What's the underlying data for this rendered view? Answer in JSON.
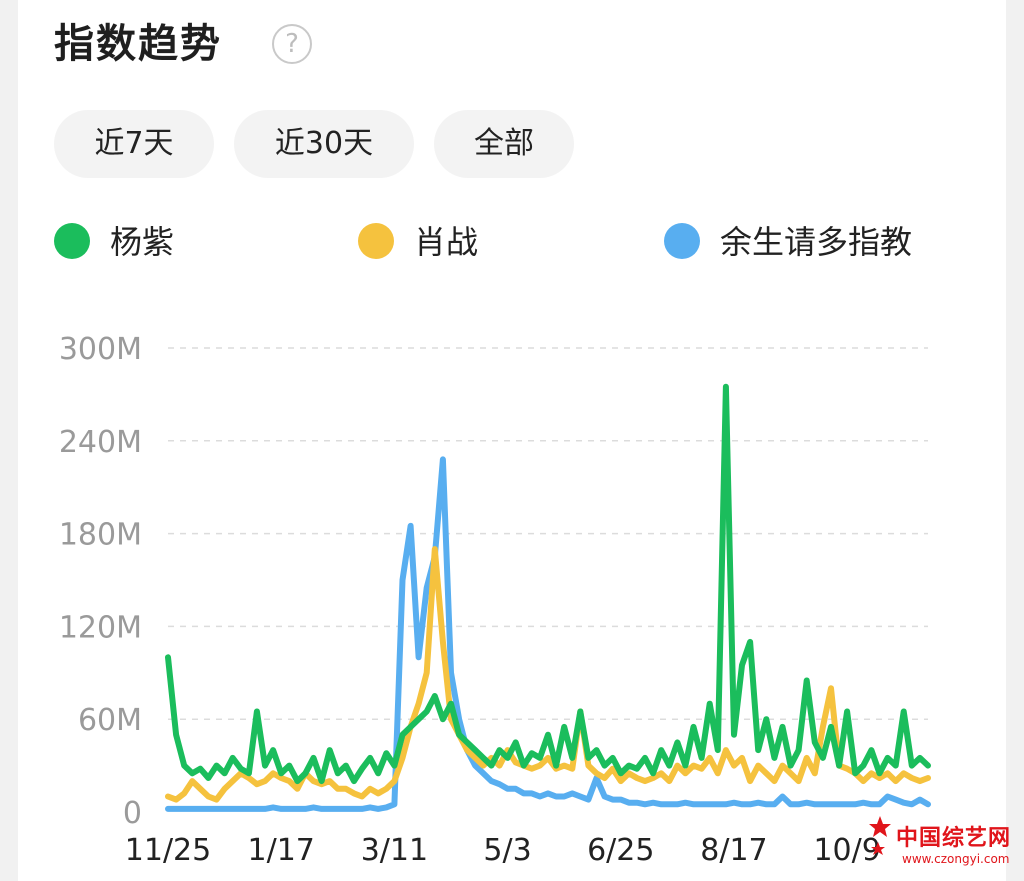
{
  "header": {
    "title": "指数趋势",
    "help_icon": "question-circle-icon",
    "help_text": "?"
  },
  "ranges": [
    {
      "label": "近7天",
      "active": false
    },
    {
      "label": "近30天",
      "active": false
    },
    {
      "label": "全部",
      "active": true
    }
  ],
  "watermark": {
    "text": "中国综艺网",
    "url": "www.czongyi.com"
  },
  "chart_data": {
    "type": "line",
    "title": "",
    "xlabel": "",
    "ylabel": "",
    "ylim": [
      0,
      300
    ],
    "y_unit": "M",
    "y_ticks": [
      "0",
      "60M",
      "120M",
      "180M",
      "240M",
      "300M"
    ],
    "y_tick_values": [
      0,
      60,
      120,
      180,
      240,
      300
    ],
    "grid": "dashed-horizontal",
    "legend": "top",
    "x_tick_labels": [
      "11/25",
      "1/17",
      "3/11",
      "5/3",
      "6/25",
      "8/17",
      "10/9"
    ],
    "x_tick_index": [
      0,
      14,
      28,
      42,
      56,
      70,
      84
    ],
    "series": [
      {
        "name": "杨紫",
        "color": "#1bbd5c",
        "values": [
          100,
          50,
          30,
          25,
          28,
          22,
          30,
          25,
          35,
          28,
          25,
          65,
          30,
          40,
          25,
          30,
          20,
          25,
          35,
          20,
          40,
          25,
          30,
          20,
          28,
          35,
          25,
          38,
          30,
          50,
          55,
          60,
          65,
          75,
          60,
          70,
          50,
          45,
          40,
          35,
          30,
          40,
          35,
          45,
          30,
          38,
          35,
          50,
          30,
          55,
          35,
          65,
          35,
          40,
          30,
          35,
          25,
          30,
          28,
          35,
          25,
          40,
          30,
          45,
          30,
          55,
          35,
          70,
          40,
          275,
          50,
          95,
          110,
          40,
          60,
          35,
          55,
          30,
          40,
          85,
          45,
          35,
          55,
          30,
          65,
          25,
          30,
          40,
          25,
          35,
          30,
          65,
          30,
          35,
          30
        ]
      },
      {
        "name": "肖战",
        "color": "#f5c23e",
        "values": [
          10,
          8,
          12,
          20,
          15,
          10,
          8,
          15,
          20,
          25,
          22,
          18,
          20,
          25,
          22,
          20,
          15,
          25,
          20,
          18,
          20,
          15,
          15,
          12,
          10,
          15,
          12,
          15,
          20,
          35,
          55,
          70,
          90,
          170,
          110,
          60,
          50,
          40,
          35,
          30,
          35,
          30,
          40,
          32,
          30,
          28,
          30,
          35,
          28,
          30,
          28,
          65,
          30,
          25,
          22,
          28,
          20,
          25,
          22,
          20,
          22,
          25,
          20,
          30,
          25,
          30,
          28,
          35,
          25,
          40,
          30,
          35,
          20,
          30,
          25,
          20,
          30,
          25,
          20,
          35,
          25,
          55,
          80,
          30,
          28,
          25,
          20,
          25,
          22,
          25,
          20,
          25,
          22,
          20,
          22
        ]
      },
      {
        "name": "余生请多指教",
        "color": "#58aef0",
        "values": [
          2,
          2,
          2,
          2,
          2,
          2,
          2,
          2,
          2,
          2,
          2,
          2,
          2,
          3,
          2,
          2,
          2,
          2,
          3,
          2,
          2,
          2,
          2,
          2,
          2,
          3,
          2,
          3,
          5,
          150,
          185,
          100,
          145,
          165,
          228,
          90,
          60,
          40,
          30,
          25,
          20,
          18,
          15,
          15,
          12,
          12,
          10,
          12,
          10,
          10,
          12,
          10,
          8,
          22,
          10,
          8,
          8,
          6,
          6,
          5,
          6,
          5,
          5,
          5,
          6,
          5,
          5,
          5,
          5,
          5,
          6,
          5,
          5,
          6,
          5,
          5,
          10,
          5,
          5,
          6,
          5,
          5,
          5,
          5,
          5,
          5,
          6,
          5,
          5,
          10,
          8,
          6,
          5,
          8,
          5
        ]
      }
    ]
  }
}
